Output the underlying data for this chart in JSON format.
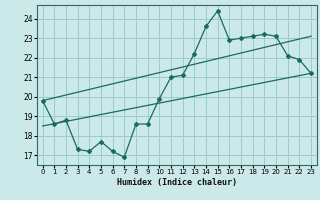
{
  "title": "",
  "xlabel": "Humidex (Indice chaleur)",
  "bg_color": "#cce9e9",
  "grid_color": "#99cccc",
  "line_color": "#1a6b5a",
  "xlim": [
    -0.5,
    23.5
  ],
  "ylim": [
    16.5,
    24.7
  ],
  "xticks": [
    0,
    1,
    2,
    3,
    4,
    5,
    6,
    7,
    8,
    9,
    10,
    11,
    12,
    13,
    14,
    15,
    16,
    17,
    18,
    19,
    20,
    21,
    22,
    23
  ],
  "yticks": [
    17,
    18,
    19,
    20,
    21,
    22,
    23,
    24
  ],
  "scatter_x": [
    0,
    1,
    2,
    3,
    4,
    5,
    6,
    7,
    8,
    9,
    10,
    11,
    12,
    13,
    14,
    15,
    16,
    17,
    18,
    19,
    20,
    21,
    22,
    23
  ],
  "scatter_y": [
    19.8,
    18.6,
    18.8,
    17.3,
    17.2,
    17.7,
    17.2,
    16.9,
    18.6,
    18.6,
    19.9,
    21.0,
    21.1,
    22.2,
    23.6,
    24.4,
    22.9,
    23.0,
    23.1,
    23.2,
    23.1,
    22.1,
    21.9,
    21.2
  ],
  "reg_line": [
    [
      0,
      23
    ],
    [
      18.5,
      21.2
    ]
  ],
  "reg_line2": [
    [
      0,
      23
    ],
    [
      19.8,
      23.1
    ]
  ]
}
